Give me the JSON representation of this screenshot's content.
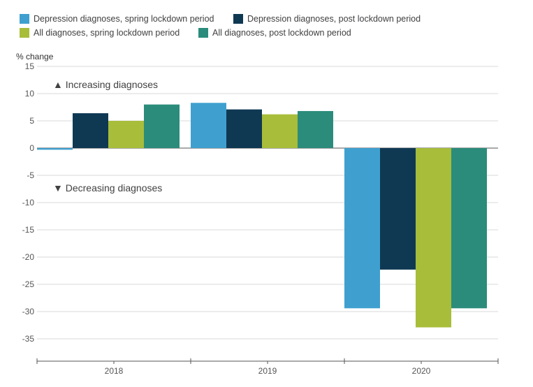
{
  "chart_data": {
    "type": "bar",
    "title": "",
    "ylabel": "% change",
    "xlabel": "",
    "categories": [
      "2018",
      "2019",
      "2020"
    ],
    "ylim": [
      -40,
      15
    ],
    "yticks": [
      15,
      10,
      5,
      0,
      -5,
      -10,
      -15,
      -20,
      -25,
      -30,
      -35
    ],
    "series": [
      {
        "name": "Depression diagnoses, spring lockdown period",
        "color": "#3fa0cf",
        "values": [
          -0.3,
          8.3,
          -29.4
        ]
      },
      {
        "name": "Depression diagnoses, post lockdown period",
        "color": "#0f3953",
        "values": [
          6.4,
          7.1,
          -22.3
        ]
      },
      {
        "name": "All diagnoses, spring lockdown period",
        "color": "#a8bd3a",
        "values": [
          5.0,
          6.2,
          -32.9
        ]
      },
      {
        "name": "All diagnoses, post lockdown period",
        "color": "#2b8c7b",
        "values": [
          8.0,
          6.8,
          -29.4
        ]
      }
    ],
    "annotations": {
      "increasing": "▲ Increasing diagnoses",
      "decreasing": "▼ Decreasing diagnoses"
    },
    "legend_position": "top"
  }
}
